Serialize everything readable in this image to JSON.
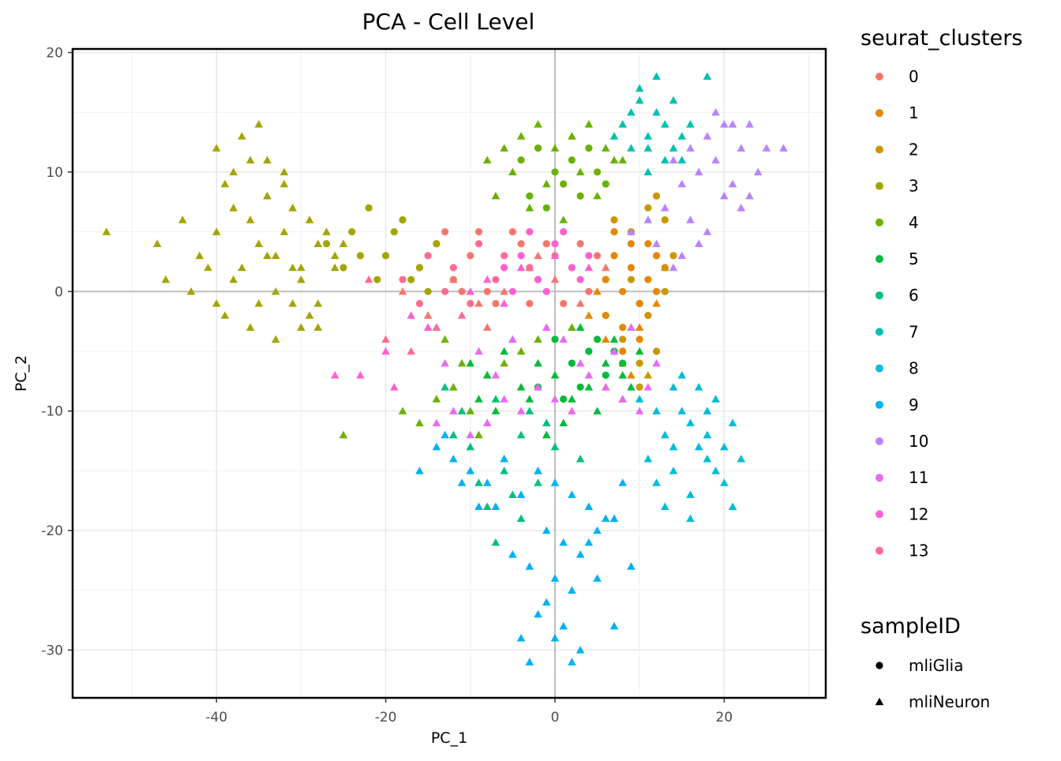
{
  "chart_data": {
    "type": "scatter",
    "title": "PCA - Cell Level",
    "xlabel": "PC_1",
    "ylabel": "PC_2",
    "xlim": [
      -57,
      32
    ],
    "ylim": [
      -34,
      20.3
    ],
    "xticks": [
      -40,
      -20,
      0,
      20
    ],
    "yticks": [
      -30,
      -20,
      -10,
      0,
      10,
      20
    ],
    "grid": true,
    "zero_lines": true,
    "legend_position": "right",
    "legends": [
      {
        "title": "seurat_clusters",
        "kind": "color",
        "entries": [
          {
            "label": "0",
            "color": "#F8766D"
          },
          {
            "label": "1",
            "color": "#E58700"
          },
          {
            "label": "2",
            "color": "#C99800"
          },
          {
            "label": "3",
            "color": "#A3A500"
          },
          {
            "label": "4",
            "color": "#6BB100"
          },
          {
            "label": "5",
            "color": "#00BA38"
          },
          {
            "label": "6",
            "color": "#00BF7D"
          },
          {
            "label": "7",
            "color": "#00C0AF"
          },
          {
            "label": "8",
            "color": "#00BCD8"
          },
          {
            "label": "9",
            "color": "#00B0F6"
          },
          {
            "label": "10",
            "color": "#B983FF"
          },
          {
            "label": "11",
            "color": "#E76BF3"
          },
          {
            "label": "12",
            "color": "#FD61D1"
          },
          {
            "label": "13",
            "color": "#FF6C91"
          }
        ]
      },
      {
        "title": "sampleID",
        "kind": "shape",
        "entries": [
          {
            "label": "mliGlia",
            "shape": "circle"
          },
          {
            "label": "mliNeuron",
            "shape": "triangle"
          }
        ]
      }
    ],
    "series": [
      {
        "cluster": "0",
        "sample": "mliGlia",
        "color": "#F8766D",
        "x": [
          -16,
          -14,
          -12,
          -10,
          -8,
          -6,
          -4,
          -2,
          0,
          2,
          4,
          6,
          -13,
          -9,
          -5,
          -1,
          3,
          -11,
          -7,
          -3,
          1,
          5
        ],
        "y": [
          2,
          4,
          1,
          3,
          0,
          2,
          4,
          1,
          3,
          2,
          0,
          1,
          5,
          5,
          5,
          4,
          4,
          0,
          -1,
          -1,
          -1,
          3
        ]
      },
      {
        "cluster": "0",
        "sample": "mliNeuron",
        "color": "#F8766D",
        "x": [
          -18,
          -15,
          -12,
          -9,
          -6,
          -3,
          0,
          3,
          6,
          -14,
          -8,
          -2
        ],
        "y": [
          0,
          -2,
          1,
          -1,
          0,
          2,
          1,
          -1,
          2,
          -3,
          -3,
          3
        ]
      },
      {
        "cluster": "1",
        "sample": "mliGlia",
        "color": "#E58700",
        "x": [
          6,
          7,
          8,
          9,
          10,
          11,
          12,
          6,
          8,
          10,
          12,
          7,
          9,
          11,
          13,
          8,
          10
        ],
        "y": [
          1,
          3,
          0,
          2,
          -1,
          1,
          3,
          -2,
          -3,
          -1,
          0,
          5,
          4,
          4,
          2,
          -5,
          -4
        ]
      },
      {
        "cluster": "1",
        "sample": "mliNeuron",
        "color": "#E58700",
        "x": [
          4,
          6,
          8,
          10,
          12,
          5,
          9
        ],
        "y": [
          -2,
          -4,
          -6,
          -3,
          -1,
          0,
          -7
        ]
      },
      {
        "cluster": "2",
        "sample": "mliGlia",
        "color": "#C99800",
        "x": [
          7,
          9,
          11,
          13,
          8,
          10,
          12,
          14,
          9,
          11,
          13,
          10,
          12
        ],
        "y": [
          6,
          5,
          7,
          6,
          -4,
          -6,
          -5,
          3,
          1,
          -2,
          0,
          -8,
          8
        ]
      },
      {
        "cluster": "2",
        "sample": "mliNeuron",
        "color": "#C99800",
        "x": [
          8,
          11,
          13,
          6
        ],
        "y": [
          -9,
          -7,
          2,
          -8
        ]
      },
      {
        "cluster": "3",
        "sample": "mliGlia",
        "color": "#A3A500",
        "x": [
          -27,
          -24,
          -22,
          -20,
          -18,
          -16,
          -14,
          -21,
          -19,
          -25,
          -23,
          -17,
          -15
        ],
        "y": [
          4,
          5,
          7,
          3,
          6,
          2,
          4,
          1,
          5,
          2,
          3,
          1,
          0
        ]
      },
      {
        "cluster": "3",
        "sample": "mliNeuron",
        "color": "#A3A500",
        "x": [
          -53,
          -47,
          -44,
          -42,
          -40,
          -39,
          -38,
          -37,
          -36,
          -35,
          -34,
          -33,
          -32,
          -31,
          -30,
          -29,
          -28,
          -27,
          -26,
          -25,
          -46,
          -43,
          -41,
          -38,
          -36,
          -34,
          -32,
          -30,
          -28,
          -26,
          -40,
          -37,
          -35,
          -33,
          -31,
          -29,
          -39,
          -36,
          -34,
          -30,
          -32,
          -40,
          -38,
          -35,
          -33,
          -28,
          -34,
          -31
        ],
        "y": [
          5,
          4,
          6,
          3,
          5,
          9,
          7,
          2,
          6,
          4,
          8,
          3,
          5,
          7,
          2,
          6,
          4,
          5,
          3,
          4,
          1,
          0,
          2,
          10,
          11,
          8,
          9,
          1,
          -1,
          2,
          12,
          13,
          14,
          0,
          -1,
          -2,
          -2,
          -3,
          11,
          -3,
          10,
          -1,
          1,
          -1,
          -4,
          -3,
          3,
          2
        ]
      },
      {
        "cluster": "4",
        "sample": "mliGlia",
        "color": "#6BB100",
        "x": [
          -4,
          -2,
          0,
          2,
          4,
          6,
          -3,
          1,
          5,
          -1,
          3
        ],
        "y": [
          11,
          12,
          10,
          11,
          12,
          9,
          8,
          9,
          10,
          7,
          8
        ]
      },
      {
        "cluster": "4",
        "sample": "mliNeuron",
        "color": "#6BB100",
        "x": [
          -8,
          -6,
          -4,
          -2,
          0,
          2,
          4,
          6,
          8,
          -5,
          -1,
          3,
          7,
          -7,
          -3,
          1,
          5,
          -25,
          -18,
          -16,
          -14,
          -12,
          -10,
          -8,
          -6,
          -4,
          -2,
          2,
          -9,
          -11,
          -13
        ],
        "y": [
          11,
          12,
          13,
          14,
          12,
          13,
          14,
          12,
          11,
          10,
          9,
          10,
          11,
          8,
          7,
          6,
          8,
          -12,
          -10,
          -11,
          -9,
          -8,
          -10,
          -7,
          -6,
          -5,
          -4,
          -3,
          -12,
          -6,
          -4
        ]
      },
      {
        "cluster": "5",
        "sample": "mliGlia",
        "color": "#00BA38",
        "x": [
          0,
          2,
          4,
          6,
          8,
          -2,
          1,
          3,
          5,
          7
        ],
        "y": [
          -4,
          -6,
          -5,
          -7,
          -6,
          -8,
          -9,
          -8,
          -4,
          -5
        ]
      },
      {
        "cluster": "5",
        "sample": "mliNeuron",
        "color": "#00BA38",
        "x": [
          -10,
          -8,
          -6,
          -4,
          -2,
          0,
          2,
          4,
          6,
          8,
          10,
          -7,
          -3,
          1,
          5,
          9,
          -5,
          3,
          7,
          -9,
          -1
        ],
        "y": [
          -6,
          -7,
          -5,
          -8,
          -6,
          -7,
          -9,
          -8,
          -6,
          -7,
          -5,
          -10,
          -9,
          -11,
          -10,
          -8,
          -4,
          -3,
          -4,
          -9,
          -12
        ]
      },
      {
        "cluster": "6",
        "sample": "mliNeuron",
        "color": "#00BF7D",
        "x": [
          -12,
          -10,
          -8,
          -6,
          -4,
          -2,
          0,
          -11,
          -7,
          -3,
          -9,
          -5,
          -1,
          -13,
          -8,
          -4,
          -7,
          -6,
          -2,
          3
        ],
        "y": [
          -12,
          -13,
          -11,
          -14,
          -12,
          -15,
          -13,
          -10,
          -9,
          -10,
          -16,
          -17,
          -11,
          -8,
          -18,
          -19,
          -21,
          -15,
          -16,
          -14
        ]
      },
      {
        "cluster": "7",
        "sample": "mliNeuron",
        "color": "#00C0AF",
        "x": [
          8,
          9,
          10,
          11,
          12,
          13,
          14,
          15,
          9,
          11,
          13,
          7,
          10,
          12,
          14,
          16,
          11,
          18,
          15
        ],
        "y": [
          14,
          15,
          16,
          13,
          15,
          14,
          16,
          13,
          12,
          12,
          11,
          13,
          17,
          18,
          12,
          14,
          10,
          18,
          11
        ]
      },
      {
        "cluster": "8",
        "sample": "mliNeuron",
        "color": "#00BCD8",
        "x": [
          10,
          12,
          14,
          16,
          18,
          20,
          11,
          13,
          15,
          17,
          19,
          21,
          12,
          14,
          16,
          18,
          20,
          15,
          17,
          19,
          22,
          13,
          21,
          16,
          14,
          18
        ],
        "y": [
          -9,
          -10,
          -8,
          -11,
          -12,
          -13,
          -14,
          -12,
          -10,
          -13,
          -15,
          -11,
          -16,
          -15,
          -17,
          -14,
          -16,
          -7,
          -8,
          -9,
          -14,
          -18,
          -18,
          -19,
          -13,
          -10
        ]
      },
      {
        "cluster": "9",
        "sample": "mliNeuron",
        "color": "#00B0F6",
        "x": [
          -14,
          -12,
          -10,
          -8,
          -6,
          -4,
          -2,
          0,
          2,
          4,
          6,
          8,
          -1,
          1,
          3,
          5,
          7,
          -3,
          -5,
          -7,
          0,
          2,
          4,
          -2,
          1,
          3,
          -1,
          0,
          -4,
          -3,
          2,
          7,
          9,
          5,
          -16,
          -13,
          -11,
          -9
        ],
        "y": [
          -13,
          -14,
          -15,
          -16,
          -14,
          -17,
          -15,
          -16,
          -17,
          -18,
          -19,
          -16,
          -20,
          -21,
          -22,
          -20,
          -19,
          -23,
          -22,
          -18,
          -24,
          -25,
          -21,
          -27,
          -28,
          -30,
          -26,
          -29,
          -29,
          -31,
          -31,
          -28,
          -23,
          -24,
          -15,
          -12,
          -16,
          -18
        ]
      },
      {
        "cluster": "10",
        "sample": "mliNeuron",
        "color": "#B983FF",
        "x": [
          14,
          16,
          18,
          20,
          22,
          24,
          15,
          17,
          19,
          21,
          23,
          13,
          16,
          18,
          20,
          22,
          25,
          27,
          19,
          21,
          17,
          15,
          23,
          11,
          12,
          14,
          9
        ],
        "y": [
          11,
          12,
          13,
          14,
          12,
          10,
          9,
          10,
          11,
          9,
          8,
          7,
          6,
          5,
          8,
          7,
          12,
          12,
          15,
          14,
          4,
          3,
          14,
          6,
          4,
          2,
          5
        ]
      },
      {
        "cluster": "11",
        "sample": "mliNeuron",
        "color": "#E76BF3",
        "x": [
          -14,
          -12,
          -10,
          -8,
          -6,
          -4,
          -2,
          0,
          2,
          4,
          6,
          8,
          10,
          12,
          -9,
          -5,
          -1,
          3,
          7,
          11,
          -13,
          -7,
          1,
          9
        ],
        "y": [
          -11,
          -10,
          -12,
          -11,
          -9,
          -10,
          -8,
          -9,
          -10,
          -7,
          -8,
          -9,
          -10,
          -6,
          -5,
          -4,
          -3,
          -6,
          -5,
          -8,
          -6,
          -7,
          -4,
          -3
        ]
      },
      {
        "cluster": "12",
        "sample": "mliGlia",
        "color": "#FD61D1",
        "x": [
          -6,
          -4,
          -2,
          0,
          2,
          4,
          -5,
          -1,
          3,
          -3,
          1
        ],
        "y": [
          2,
          3,
          1,
          4,
          2,
          3,
          0,
          0,
          1,
          5,
          5
        ]
      },
      {
        "cluster": "12",
        "sample": "mliNeuron",
        "color": "#FD61D1",
        "x": [
          -26,
          -23,
          -20,
          -19,
          -17,
          -15,
          -8,
          -4,
          0,
          4,
          -10,
          -6
        ],
        "y": [
          -7,
          -7,
          -5,
          -8,
          -2,
          -3,
          1,
          2,
          3,
          2,
          0,
          -1
        ]
      },
      {
        "cluster": "13",
        "sample": "mliGlia",
        "color": "#FF6C91",
        "x": [
          -18,
          -15,
          -12,
          -9,
          -6,
          -3,
          -16,
          -13,
          -10,
          -7
        ],
        "y": [
          1,
          3,
          2,
          4,
          3,
          2,
          -1,
          0,
          -1,
          1
        ]
      },
      {
        "cluster": "13",
        "sample": "mliNeuron",
        "color": "#FF6C91",
        "x": [
          -22,
          -20,
          -17,
          -14,
          -11
        ],
        "y": [
          1,
          -4,
          -5,
          -3,
          -2
        ]
      }
    ]
  }
}
